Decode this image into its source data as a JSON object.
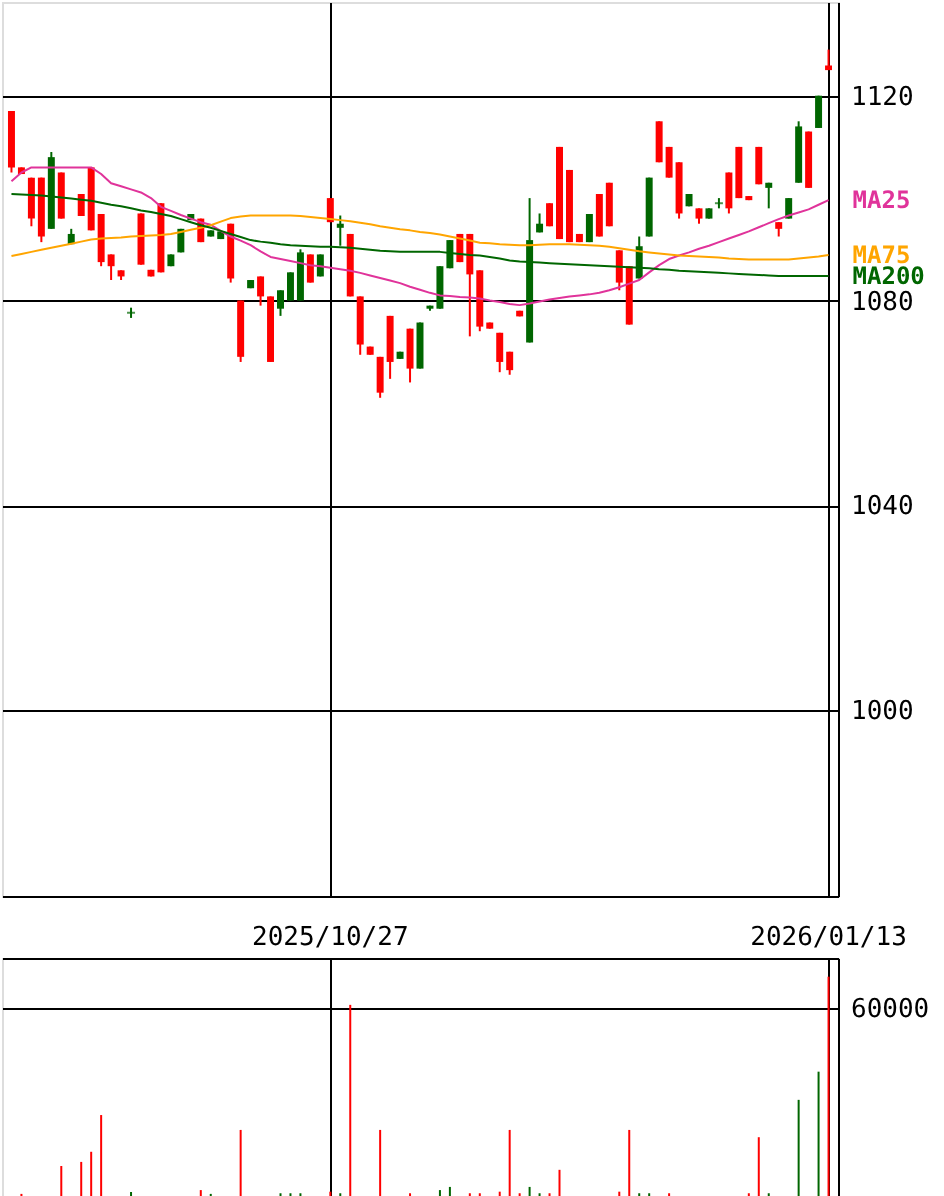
{
  "chart_data": [
    {
      "type": "candlestick",
      "tick_labels": "y",
      "grid": true,
      "categories": [
        null,
        null,
        null,
        null,
        null,
        null,
        null,
        null,
        null,
        null,
        null,
        null,
        null,
        null,
        null,
        null,
        null,
        null,
        null,
        null,
        null,
        null,
        null,
        null,
        null,
        null,
        null,
        null,
        null,
        null,
        null,
        null,
        "2025/10/27",
        null,
        null,
        null,
        null,
        null,
        null,
        null,
        null,
        null,
        null,
        null,
        null,
        null,
        null,
        null,
        null,
        null,
        null,
        null,
        null,
        null,
        null,
        null,
        null,
        null,
        null,
        null,
        null,
        null,
        null,
        null,
        null,
        null,
        null,
        null,
        null,
        null,
        null,
        null,
        null,
        null,
        null,
        null,
        null,
        null,
        null,
        null,
        null,
        null,
        "2026/01/13"
      ],
      "ylim": [
        963.7,
        1138.3
      ],
      "yticks": [
        1000,
        1040,
        1080,
        1120
      ],
      "ohlc": [
        [
          1106,
          1117,
          1105,
          1117
        ],
        [
          1104.7,
          1106,
          1104.7,
          1106
        ],
        [
          1096,
          1104,
          1094.5,
          1104
        ],
        [
          1092.5,
          1104,
          1091.4,
          1104
        ],
        [
          1108,
          1109,
          1094,
          1094
        ],
        [
          1096,
          1105,
          1096,
          1105
        ],
        [
          1093,
          1094,
          1091,
          1091
        ],
        [
          1096.5,
          1100.8,
          1096.5,
          1100.8
        ],
        [
          1093.7,
          1106,
          1093.7,
          1106
        ],
        [
          1087.5,
          1096.9,
          1086.7,
          1096.9
        ],
        [
          1086.7,
          1089,
          1084,
          1089
        ],
        [
          1084.7,
          1085.9,
          1084,
          1085.9
        ],
        [
          1077.6,
          1078.6,
          1076.6,
          1077.6
        ],
        [
          1087,
          1097,
          1087,
          1097
        ],
        [
          1084.7,
          1086,
          1084.7,
          1086
        ],
        [
          1085.5,
          1099,
          1085.5,
          1099
        ],
        [
          1089,
          1089,
          1086.7,
          1086.7
        ],
        [
          1094,
          1094,
          1089.4,
          1089.4
        ],
        [
          1096.9,
          1096.9,
          1095.7,
          1095.7
        ],
        [
          1091.4,
          1096,
          1091.4,
          1096
        ],
        [
          1093.7,
          1093.7,
          1092.5,
          1092.5
        ],
        [
          1093.5,
          1093.5,
          1092,
          1092
        ],
        [
          1084.3,
          1095,
          1083.5,
          1095
        ],
        [
          1069,
          1080,
          1068,
          1080
        ],
        [
          1084,
          1084,
          1082.4,
          1082.4
        ],
        [
          1080.8,
          1084.7,
          1079,
          1084.7
        ],
        [
          1068,
          1080.8,
          1068,
          1080.8
        ],
        [
          1082,
          1082,
          1077,
          1078.4
        ],
        [
          1085.5,
          1085.5,
          1080,
          1080
        ],
        [
          1089.4,
          1090,
          1080,
          1080
        ],
        [
          1083.5,
          1089,
          1083.5,
          1089
        ],
        [
          1089,
          1089,
          1084.7,
          1084.7
        ],
        [
          1095.3,
          1100,
          1095.3,
          1100
        ],
        [
          1095,
          1096.6,
          1090.7,
          1094.2
        ],
        [
          1080.8,
          1093,
          1080.8,
          1093
        ],
        [
          1071.4,
          1080.8,
          1069.4,
          1080.8
        ],
        [
          1069.4,
          1071,
          1069.4,
          1071
        ],
        [
          1062,
          1069,
          1061,
          1069
        ],
        [
          1068,
          1077,
          1064.7,
          1077
        ],
        [
          1070,
          1070,
          1068.6,
          1068.6
        ],
        [
          1066.7,
          1074.5,
          1064,
          1074.5
        ],
        [
          1075.7,
          1075.7,
          1066.7,
          1066.7
        ],
        [
          1079,
          1079,
          1078,
          1078.4
        ],
        [
          1086.7,
          1086.7,
          1078.4,
          1078.4
        ],
        [
          1091.8,
          1091.8,
          1086.3,
          1086.3
        ],
        [
          1087.5,
          1093,
          1087.5,
          1093
        ],
        [
          1085.1,
          1093,
          1073,
          1093
        ],
        [
          1074.9,
          1085.9,
          1074,
          1085.9
        ],
        [
          1074.5,
          1075.7,
          1074.5,
          1075.7
        ],
        [
          1068,
          1073.7,
          1066,
          1073.7
        ],
        [
          1066.4,
          1070,
          1065.5,
          1070
        ],
        [
          1076.9,
          1078,
          1076.9,
          1078
        ],
        [
          1091.8,
          1100,
          1071.8,
          1071.8
        ],
        [
          1095,
          1097,
          1093.3,
          1093.3
        ],
        [
          1094.5,
          1099,
          1094.5,
          1099
        ],
        [
          1092,
          1110,
          1092,
          1110
        ],
        [
          1091.4,
          1105.5,
          1091.4,
          1105.5
        ],
        [
          1091.4,
          1093,
          1091.4,
          1093
        ],
        [
          1096.9,
          1096.9,
          1091.4,
          1091.4
        ],
        [
          1092.5,
          1100.8,
          1092.5,
          1100.8
        ],
        [
          1094.5,
          1103,
          1094.5,
          1103
        ],
        [
          1083.5,
          1089.8,
          1082,
          1089.8
        ],
        [
          1075.3,
          1086.7,
          1075.3,
          1086.7
        ],
        [
          1090.6,
          1092.5,
          1084.3,
          1084.3
        ],
        [
          1104,
          1104,
          1092.5,
          1092.5
        ],
        [
          1107,
          1115,
          1107,
          1115
        ],
        [
          1104,
          1110,
          1104,
          1110
        ],
        [
          1097,
          1107,
          1096,
          1107
        ],
        [
          1100.8,
          1100.8,
          1098.4,
          1098.4
        ],
        [
          1096,
          1098,
          1095,
          1098
        ],
        [
          1098,
          1098,
          1096,
          1096
        ],
        [
          1099,
          1100,
          1098,
          1099
        ],
        [
          1098,
          1105,
          1097,
          1105
        ],
        [
          1100,
          1110,
          1100,
          1110
        ],
        [
          1099.6,
          1100.4,
          1099.6,
          1100.4
        ],
        [
          1102.7,
          1110,
          1102.7,
          1110
        ],
        [
          1103,
          1103,
          1098,
          1102
        ],
        [
          1094,
          1095.3,
          1092.5,
          1095.3
        ],
        [
          1100,
          1100,
          1096,
          1096
        ],
        [
          1114,
          1115,
          1103,
          1103
        ],
        [
          1102,
          1113,
          1102,
          1113
        ],
        [
          1120,
          1120,
          1113.7,
          1113.7
        ],
        [
          1125,
          1129,
          1125,
          1125.9
        ]
      ],
      "colors": [
        "#ff0000",
        "#ff0000",
        "#ff0000",
        "#ff0000",
        "#006600",
        "#ff0000",
        "#006600",
        "#ff0000",
        "#ff0000",
        "#ff0000",
        "#ff0000",
        "#ff0000",
        "#006600",
        "#ff0000",
        "#ff0000",
        "#ff0000",
        "#006600",
        "#006600",
        "#006600",
        "#ff0000",
        "#006600",
        "#006600",
        "#ff0000",
        "#ff0000",
        "#006600",
        "#ff0000",
        "#ff0000",
        "#006600",
        "#006600",
        "#006600",
        "#ff0000",
        "#006600",
        "#ff0000",
        "#006600",
        "#ff0000",
        "#ff0000",
        "#ff0000",
        "#ff0000",
        "#ff0000",
        "#006600",
        "#ff0000",
        "#006600",
        "#006600",
        "#006600",
        "#006600",
        "#ff0000",
        "#ff0000",
        "#ff0000",
        "#ff0000",
        "#ff0000",
        "#ff0000",
        "#ff0000",
        "#006600",
        "#006600",
        "#ff0000",
        "#ff0000",
        "#ff0000",
        "#ff0000",
        "#006600",
        "#ff0000",
        "#ff0000",
        "#ff0000",
        "#ff0000",
        "#006600",
        "#006600",
        "#ff0000",
        "#ff0000",
        "#ff0000",
        "#006600",
        "#ff0000",
        "#006600",
        "#006600",
        "#ff0000",
        "#ff0000",
        "#ff0000",
        "#ff0000",
        "#006600",
        "#ff0000",
        "#006600",
        "#006600",
        "#ff0000",
        "#006600",
        "#ff0000"
      ],
      "series": [
        {
          "name": "MA25",
          "type": "line",
          "color": "#e0339a",
          "values": [
            1103.3,
            1105,
            1106,
            1106,
            1106,
            1106,
            1106,
            1106,
            1106,
            1104.7,
            1102.9,
            1102.3,
            1101.7,
            1101.1,
            1100,
            1098.3,
            1097.5,
            1096.7,
            1096,
            1095.3,
            1094.8,
            1093.6,
            1092.5,
            1091.7,
            1090.8,
            1089.6,
            1088.5,
            1088.1,
            1087.7,
            1087.3,
            1086.9,
            1086.7,
            1086.4,
            1086.1,
            1085.8,
            1085.4,
            1084.9,
            1084.4,
            1083.9,
            1083.4,
            1082.7,
            1082.1,
            1081.5,
            1081,
            1080.9,
            1080.7,
            1080.6,
            1080.4,
            1080,
            1079.7,
            1079.3,
            1079.1,
            1079.4,
            1079.8,
            1080.2,
            1080.5,
            1080.8,
            1081,
            1081.2,
            1081.5,
            1082,
            1082.6,
            1083.3,
            1084,
            1085.5,
            1086.9,
            1088.1,
            1088.8,
            1089.4,
            1090.1,
            1090.7,
            1091.4,
            1092.1,
            1092.8,
            1093.5,
            1094.3,
            1095.1,
            1095.9,
            1096.6,
            1097.2,
            1097.8,
            1098.7,
            1099.6
          ]
        },
        {
          "name": "MA75",
          "type": "line",
          "color": "#ffa500",
          "values": [
            1088.7,
            1089.1,
            1089.5,
            1089.9,
            1090.3,
            1090.7,
            1091.1,
            1091.5,
            1091.9,
            1092.1,
            1092.2,
            1092.3,
            1092.5,
            1092.6,
            1092.7,
            1092.8,
            1093,
            1093.4,
            1093.8,
            1094.2,
            1094.7,
            1095.4,
            1096.1,
            1096.4,
            1096.6,
            1096.6,
            1096.6,
            1096.6,
            1096.6,
            1096.5,
            1096.3,
            1096.1,
            1095.9,
            1095.7,
            1095.5,
            1095.2,
            1094.9,
            1094.5,
            1094.2,
            1093.9,
            1093.7,
            1093.4,
            1093.2,
            1092.9,
            1092.5,
            1092.1,
            1091.7,
            1091.3,
            1091.2,
            1091,
            1090.9,
            1090.8,
            1090.8,
            1090.9,
            1091,
            1091,
            1091,
            1090.9,
            1090.8,
            1090.7,
            1090.5,
            1090.2,
            1089.9,
            1089.6,
            1089.4,
            1089.2,
            1089,
            1088.8,
            1088.7,
            1088.6,
            1088.5,
            1088.4,
            1088.2,
            1088.1,
            1088,
            1088,
            1088,
            1088,
            1088,
            1088.2,
            1088.4,
            1088.6,
            1088.9
          ]
        },
        {
          "name": "MA200",
          "type": "line",
          "color": "#006600",
          "values": [
            1100.8,
            1100.7,
            1100.6,
            1100.5,
            1100.3,
            1100.1,
            1099.9,
            1099.7,
            1099.5,
            1099.1,
            1098.7,
            1098.4,
            1098,
            1097.6,
            1097.3,
            1096.9,
            1096.5,
            1095.9,
            1095.3,
            1094.7,
            1094.2,
            1093.6,
            1093,
            1092.4,
            1091.8,
            1091.5,
            1091.3,
            1091,
            1090.8,
            1090.7,
            1090.6,
            1090.5,
            1090.5,
            1090.4,
            1090.3,
            1090.1,
            1089.9,
            1089.7,
            1089.6,
            1089.5,
            1089.5,
            1089.5,
            1089.5,
            1089.5,
            1089.3,
            1089.1,
            1088.9,
            1088.8,
            1088.5,
            1088.2,
            1087.8,
            1087.6,
            1087.5,
            1087.4,
            1087.3,
            1087.2,
            1087.1,
            1087,
            1086.9,
            1086.8,
            1086.7,
            1086.6,
            1086.5,
            1086.4,
            1086.3,
            1086.1,
            1086,
            1085.8,
            1085.7,
            1085.6,
            1085.5,
            1085.4,
            1085.3,
            1085.2,
            1085.1,
            1085,
            1084.9,
            1084.8,
            1084.8,
            1084.8,
            1084.8,
            1084.8,
            1084.8
          ]
        }
      ]
    },
    {
      "type": "bar",
      "grid": true,
      "categories": [
        null,
        null,
        null,
        null,
        null,
        null,
        null,
        null,
        null,
        null,
        null,
        null,
        null,
        null,
        null,
        null,
        null,
        null,
        null,
        null,
        null,
        null,
        null,
        null,
        null,
        null,
        null,
        null,
        null,
        null,
        null,
        null,
        "2025/10/27",
        null,
        null,
        null,
        null,
        null,
        null,
        null,
        null,
        null,
        null,
        null,
        null,
        null,
        null,
        null,
        null,
        null,
        null,
        null,
        null,
        null,
        null,
        null,
        null,
        null,
        null,
        null,
        null,
        null,
        null,
        null,
        null,
        null,
        null,
        null,
        null,
        null,
        null,
        null,
        null,
        null,
        null,
        null,
        null,
        null,
        null,
        null,
        null,
        null,
        "2026/01/13"
      ],
      "ylim": [
        0,
        75800
      ],
      "yticks": [
        60000
      ],
      "values": [
        null,
        1300,
        null,
        null,
        null,
        10100,
        null,
        11400,
        14600,
        26200,
        null,
        null,
        1900,
        null,
        null,
        null,
        null,
        null,
        null,
        2500,
        1300,
        null,
        null,
        21500,
        null,
        null,
        null,
        1500,
        1500,
        1500,
        null,
        null,
        2000,
        1500,
        61000,
        null,
        null,
        21500,
        null,
        null,
        1500,
        null,
        null,
        2500,
        3500,
        null,
        1500,
        1500,
        null,
        2000,
        21500,
        1500,
        3500,
        1500,
        1500,
        8900,
        null,
        null,
        null,
        null,
        null,
        2000,
        21500,
        1500,
        1500,
        null,
        1500,
        null,
        null,
        null,
        null,
        null,
        null,
        null,
        1500,
        19200,
        1500,
        null,
        null,
        31000,
        null,
        39900,
        69900
      ],
      "colors": [
        "#ff0000",
        "#ff0000",
        "#ff0000",
        "#ff0000",
        "#006600",
        "#ff0000",
        "#006600",
        "#ff0000",
        "#ff0000",
        "#ff0000",
        "#ff0000",
        "#ff0000",
        "#006600",
        "#ff0000",
        "#ff0000",
        "#ff0000",
        "#006600",
        "#006600",
        "#006600",
        "#ff0000",
        "#006600",
        "#006600",
        "#ff0000",
        "#ff0000",
        "#006600",
        "#ff0000",
        "#ff0000",
        "#006600",
        "#006600",
        "#006600",
        "#ff0000",
        "#006600",
        "#ff0000",
        "#006600",
        "#ff0000",
        "#ff0000",
        "#ff0000",
        "#ff0000",
        "#ff0000",
        "#006600",
        "#ff0000",
        "#006600",
        "#006600",
        "#006600",
        "#006600",
        "#ff0000",
        "#ff0000",
        "#ff0000",
        "#ff0000",
        "#ff0000",
        "#ff0000",
        "#ff0000",
        "#006600",
        "#006600",
        "#ff0000",
        "#ff0000",
        "#ff0000",
        "#ff0000",
        "#006600",
        "#ff0000",
        "#ff0000",
        "#ff0000",
        "#ff0000",
        "#006600",
        "#006600",
        "#ff0000",
        "#ff0000",
        "#ff0000",
        "#006600",
        "#ff0000",
        "#006600",
        "#006600",
        "#ff0000",
        "#ff0000",
        "#ff0000",
        "#ff0000",
        "#006600",
        "#ff0000",
        "#006600",
        "#006600",
        "#ff0000",
        "#006600",
        "#ff0000"
      ]
    }
  ]
}
